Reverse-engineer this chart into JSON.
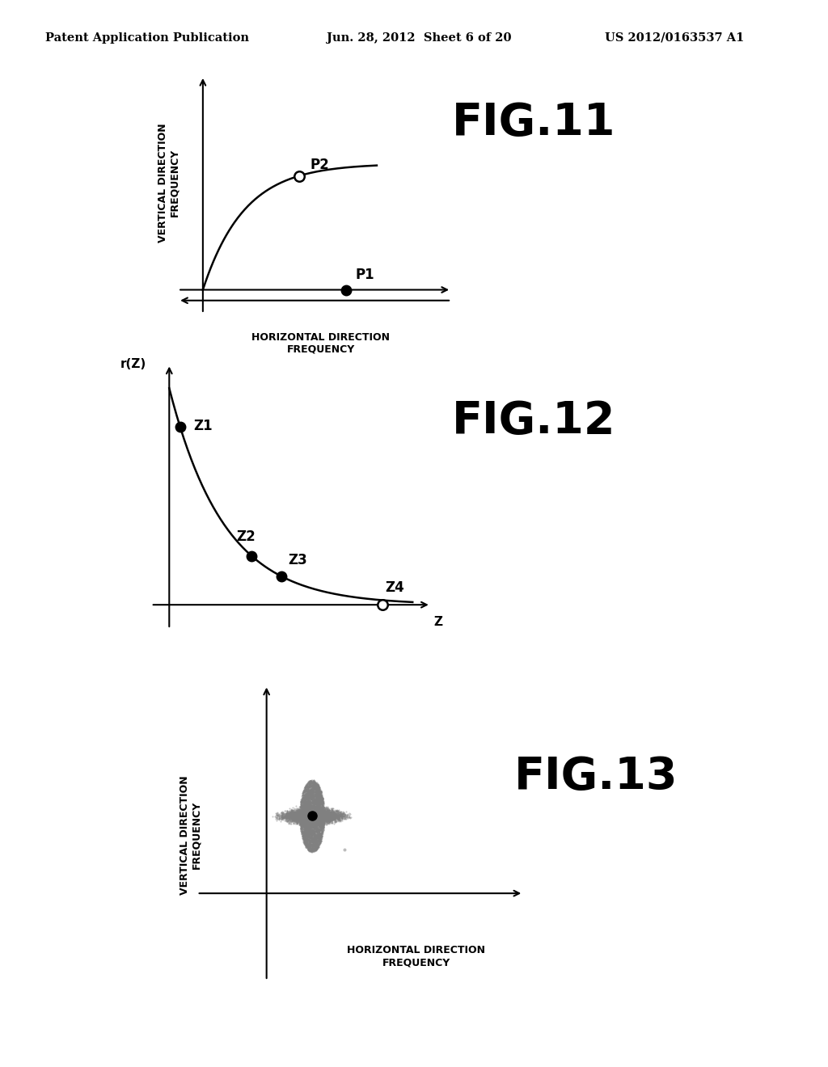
{
  "header_left": "Patent Application Publication",
  "header_mid": "Jun. 28, 2012  Sheet 6 of 20",
  "header_right": "US 2012/0163537 A1",
  "fig11_title": "FIG.11",
  "fig12_title": "FIG.12",
  "fig13_title": "FIG.13",
  "fig11_ylabel": "VERTICAL DIRECTION\nFREQUENCY",
  "fig11_xlabel": "HORIZONTAL DIRECTION\nFREQUENCY",
  "fig12_ylabel": "r(Z)",
  "fig12_xlabel": "Z",
  "fig13_ylabel": "VERTICAL DIRECTION\nFREQUENCY",
  "fig13_xlabel": "HORIZONTAL DIRECTION\nFREQUENCY",
  "bg_color": "#ffffff",
  "line_color": "#000000",
  "header_fontsize": 10.5,
  "fig_title_fontsize": 40,
  "axis_label_fontsize": 9,
  "point_label_fontsize": 12,
  "rz_label_fontsize": 11,
  "axis_label_weight": "bold"
}
